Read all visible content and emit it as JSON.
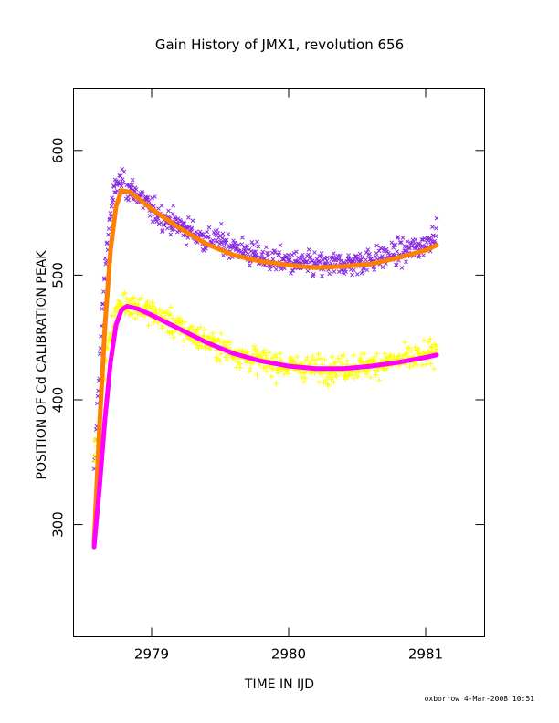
{
  "chart_data": {
    "type": "scatter",
    "title": "Gain History of JMX1, revolution 656",
    "xlabel": "TIME IN IJD",
    "ylabel": "POSITION OF Cd CALIBRATION PEAK",
    "xlim": [
      2978.43,
      2981.43
    ],
    "ylim": [
      210,
      650
    ],
    "xticks": [
      2979,
      2980,
      2981
    ],
    "yticks": [
      300,
      400,
      500,
      600
    ],
    "grid": false,
    "series": [
      {
        "marker": "x",
        "color": "#8a2be2",
        "x_range": [
          2978.58,
          2981.08
        ],
        "points": [
          [
            2978.58,
            338
          ],
          [
            2978.6,
            385
          ],
          [
            2978.62,
            430
          ],
          [
            2978.64,
            470
          ],
          [
            2978.66,
            505
          ],
          [
            2978.68,
            530
          ],
          [
            2978.7,
            550
          ],
          [
            2978.72,
            562
          ],
          [
            2978.75,
            575
          ],
          [
            2978.8,
            572
          ],
          [
            2978.85,
            568
          ],
          [
            2978.9,
            565
          ],
          [
            2979.0,
            552
          ],
          [
            2979.1,
            545
          ],
          [
            2979.2,
            540
          ],
          [
            2979.3,
            534
          ],
          [
            2979.4,
            528
          ],
          [
            2979.5,
            528
          ],
          [
            2979.6,
            522
          ],
          [
            2979.7,
            518
          ],
          [
            2979.8,
            514
          ],
          [
            2979.9,
            512
          ],
          [
            2980.0,
            510
          ],
          [
            2980.1,
            509
          ],
          [
            2980.2,
            508
          ],
          [
            2980.3,
            508
          ],
          [
            2980.4,
            509
          ],
          [
            2980.5,
            510
          ],
          [
            2980.6,
            512
          ],
          [
            2980.7,
            515
          ],
          [
            2980.8,
            518
          ],
          [
            2980.9,
            520
          ],
          [
            2981.0,
            525
          ],
          [
            2981.07,
            535
          ]
        ]
      },
      {
        "marker": "line",
        "color": "#ff7f00",
        "points": [
          [
            2978.58,
            285
          ],
          [
            2978.62,
            380
          ],
          [
            2978.66,
            460
          ],
          [
            2978.7,
            520
          ],
          [
            2978.74,
            555
          ],
          [
            2978.78,
            568
          ],
          [
            2978.85,
            566
          ],
          [
            2979.0,
            553
          ],
          [
            2979.2,
            538
          ],
          [
            2979.4,
            525
          ],
          [
            2979.6,
            516
          ],
          [
            2979.8,
            511
          ],
          [
            2980.0,
            508
          ],
          [
            2980.2,
            506
          ],
          [
            2980.4,
            507
          ],
          [
            2980.6,
            509
          ],
          [
            2980.8,
            514
          ],
          [
            2981.0,
            520
          ],
          [
            2981.08,
            524
          ]
        ]
      },
      {
        "marker": "+",
        "color": "#ffff00",
        "x_range": [
          2978.58,
          2981.08
        ],
        "points": [
          [
            2978.6,
            360
          ],
          [
            2978.65,
            420
          ],
          [
            2978.7,
            455
          ],
          [
            2978.75,
            472
          ],
          [
            2978.8,
            478
          ],
          [
            2978.85,
            477
          ],
          [
            2978.9,
            475
          ],
          [
            2979.0,
            470
          ],
          [
            2979.1,
            464
          ],
          [
            2979.2,
            458
          ],
          [
            2979.3,
            452
          ],
          [
            2979.4,
            447
          ],
          [
            2979.5,
            442
          ],
          [
            2979.6,
            438
          ],
          [
            2979.7,
            434
          ],
          [
            2979.8,
            431
          ],
          [
            2979.9,
            429
          ],
          [
            2980.0,
            427
          ],
          [
            2980.1,
            426
          ],
          [
            2980.2,
            425
          ],
          [
            2980.3,
            425
          ],
          [
            2980.4,
            426
          ],
          [
            2980.5,
            427
          ],
          [
            2980.6,
            428
          ],
          [
            2980.7,
            430
          ],
          [
            2980.8,
            431
          ],
          [
            2980.9,
            433
          ],
          [
            2981.0,
            435
          ],
          [
            2981.07,
            438
          ]
        ]
      },
      {
        "marker": "line",
        "color": "#ff00ff",
        "points": [
          [
            2978.58,
            282
          ],
          [
            2978.62,
            330
          ],
          [
            2978.66,
            385
          ],
          [
            2978.7,
            430
          ],
          [
            2978.74,
            460
          ],
          [
            2978.78,
            472
          ],
          [
            2978.82,
            475
          ],
          [
            2978.9,
            473
          ],
          [
            2979.0,
            468
          ],
          [
            2979.2,
            457
          ],
          [
            2979.4,
            446
          ],
          [
            2979.6,
            437
          ],
          [
            2979.8,
            431
          ],
          [
            2980.0,
            427
          ],
          [
            2980.2,
            425
          ],
          [
            2980.4,
            425
          ],
          [
            2980.6,
            427
          ],
          [
            2980.8,
            430
          ],
          [
            2981.0,
            434
          ],
          [
            2981.08,
            436
          ]
        ]
      }
    ],
    "footer": "oxborrow   4-Mar-2008 10:51"
  }
}
